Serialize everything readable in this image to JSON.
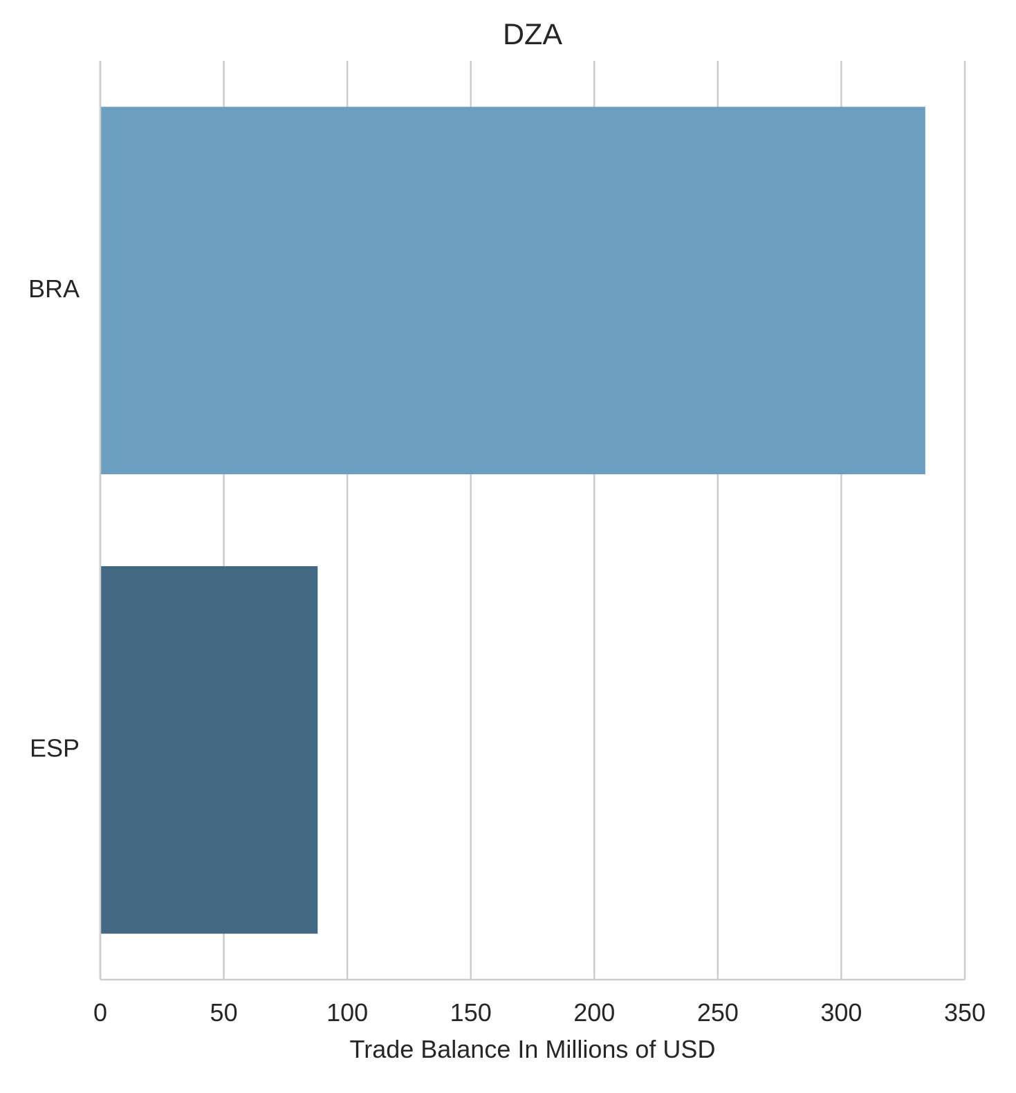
{
  "chart_data": {
    "type": "bar",
    "orientation": "horizontal",
    "title": "DZA",
    "xlabel": "Trade Balance In Millions of USD",
    "ylabel": "",
    "categories": [
      "BRA",
      "ESP"
    ],
    "values": [
      334,
      88
    ],
    "colors": [
      "#6c9ebf",
      "#426884"
    ],
    "xlim": [
      0,
      350
    ],
    "xticks": [
      0,
      50,
      100,
      150,
      200,
      250,
      300,
      350
    ],
    "grid": "vertical",
    "legend": "none"
  }
}
